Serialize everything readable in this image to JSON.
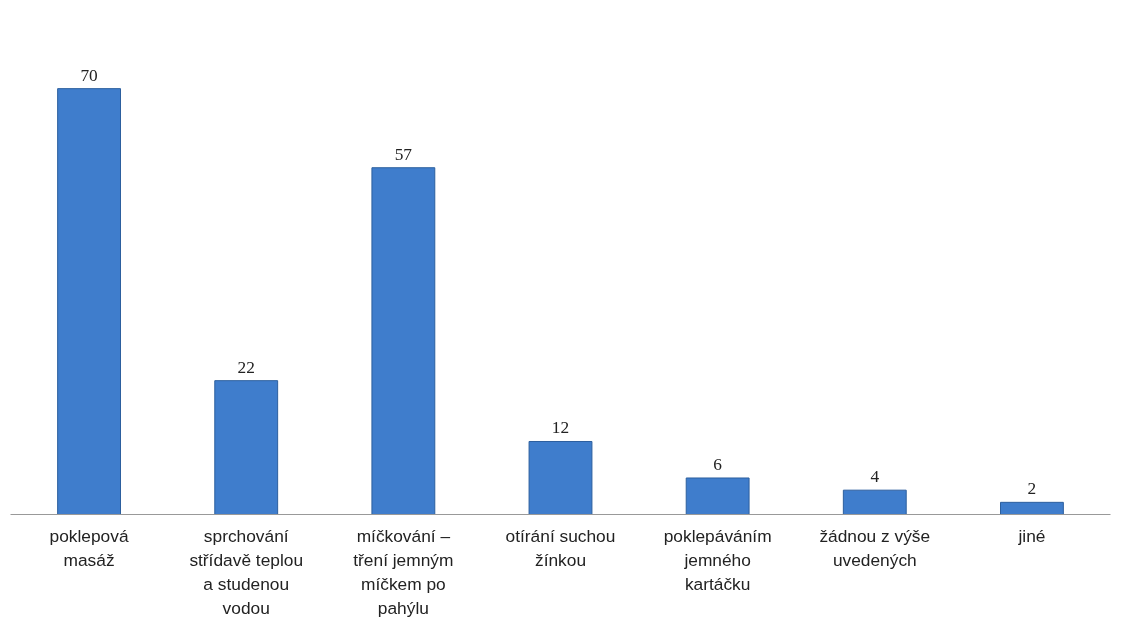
{
  "chart_data": {
    "type": "bar",
    "categories": [
      "poklepová\nmasáž",
      "sprchování\nstřídavě teplou\na studenou\nvodou",
      "míčkování –\ntření jemným\nmíčkem po\npahýlu",
      "otírání suchou\nžínkou",
      "poklepáváním\njemného\nkartáčku",
      "žádnou z výše\nuvedených",
      "jiné"
    ],
    "values": [
      70,
      22,
      57,
      12,
      6,
      4,
      2
    ],
    "color": "#3f7dcc",
    "data_labels": true
  }
}
